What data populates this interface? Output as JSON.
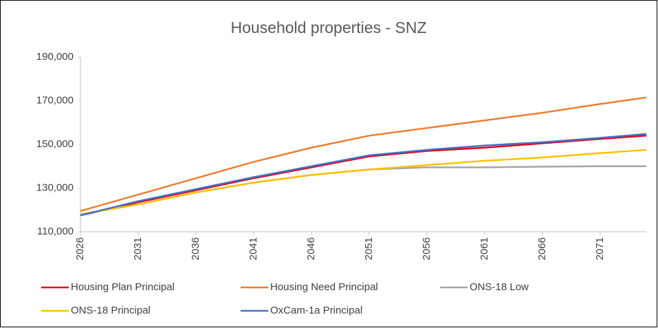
{
  "chart_data": {
    "type": "line",
    "title": "Household properties - SNZ",
    "x": [
      2026,
      2031,
      2036,
      2041,
      2046,
      2051,
      2056,
      2061,
      2066,
      2071,
      2075
    ],
    "xlim": [
      2026,
      2075
    ],
    "xticks": [
      2026,
      2031,
      2036,
      2041,
      2046,
      2051,
      2056,
      2061,
      2066,
      2071
    ],
    "ylim": [
      110000,
      190000
    ],
    "yticks": [
      {
        "value": 110000,
        "label": "110,000"
      },
      {
        "value": 130000,
        "label": "130,000"
      },
      {
        "value": 150000,
        "label": "150,000"
      },
      {
        "value": 170000,
        "label": "170,000"
      },
      {
        "value": 190000,
        "label": "190,000"
      }
    ],
    "grid": false,
    "legend": "bottom",
    "series": [
      {
        "name": "Housing Plan Principal",
        "color": "#e8001c",
        "values": [
          117500,
          123500,
          129000,
          134500,
          139500,
          144500,
          147000,
          148500,
          150500,
          152500,
          154000
        ]
      },
      {
        "name": "Housing Need Principal",
        "color": "#ed7d31",
        "values": [
          119500,
          127000,
          134500,
          142000,
          148500,
          154000,
          157500,
          161000,
          164500,
          168500,
          171500
        ]
      },
      {
        "name": "ONS-18 Low",
        "color": "#a5a5a5",
        "values": [
          118000,
          122500,
          128000,
          132500,
          136000,
          138500,
          139500,
          139500,
          139800,
          140000,
          140000
        ]
      },
      {
        "name": "ONS-18 Principal",
        "color": "#ffc000",
        "values": [
          118000,
          122500,
          128000,
          132500,
          136000,
          138500,
          140500,
          142500,
          144000,
          146000,
          147500
        ]
      },
      {
        "name": "OxCam-1a Principal",
        "color": "#4472c4",
        "values": [
          117500,
          124000,
          129500,
          135000,
          140000,
          145000,
          147500,
          149500,
          151000,
          153000,
          154800
        ]
      }
    ]
  }
}
